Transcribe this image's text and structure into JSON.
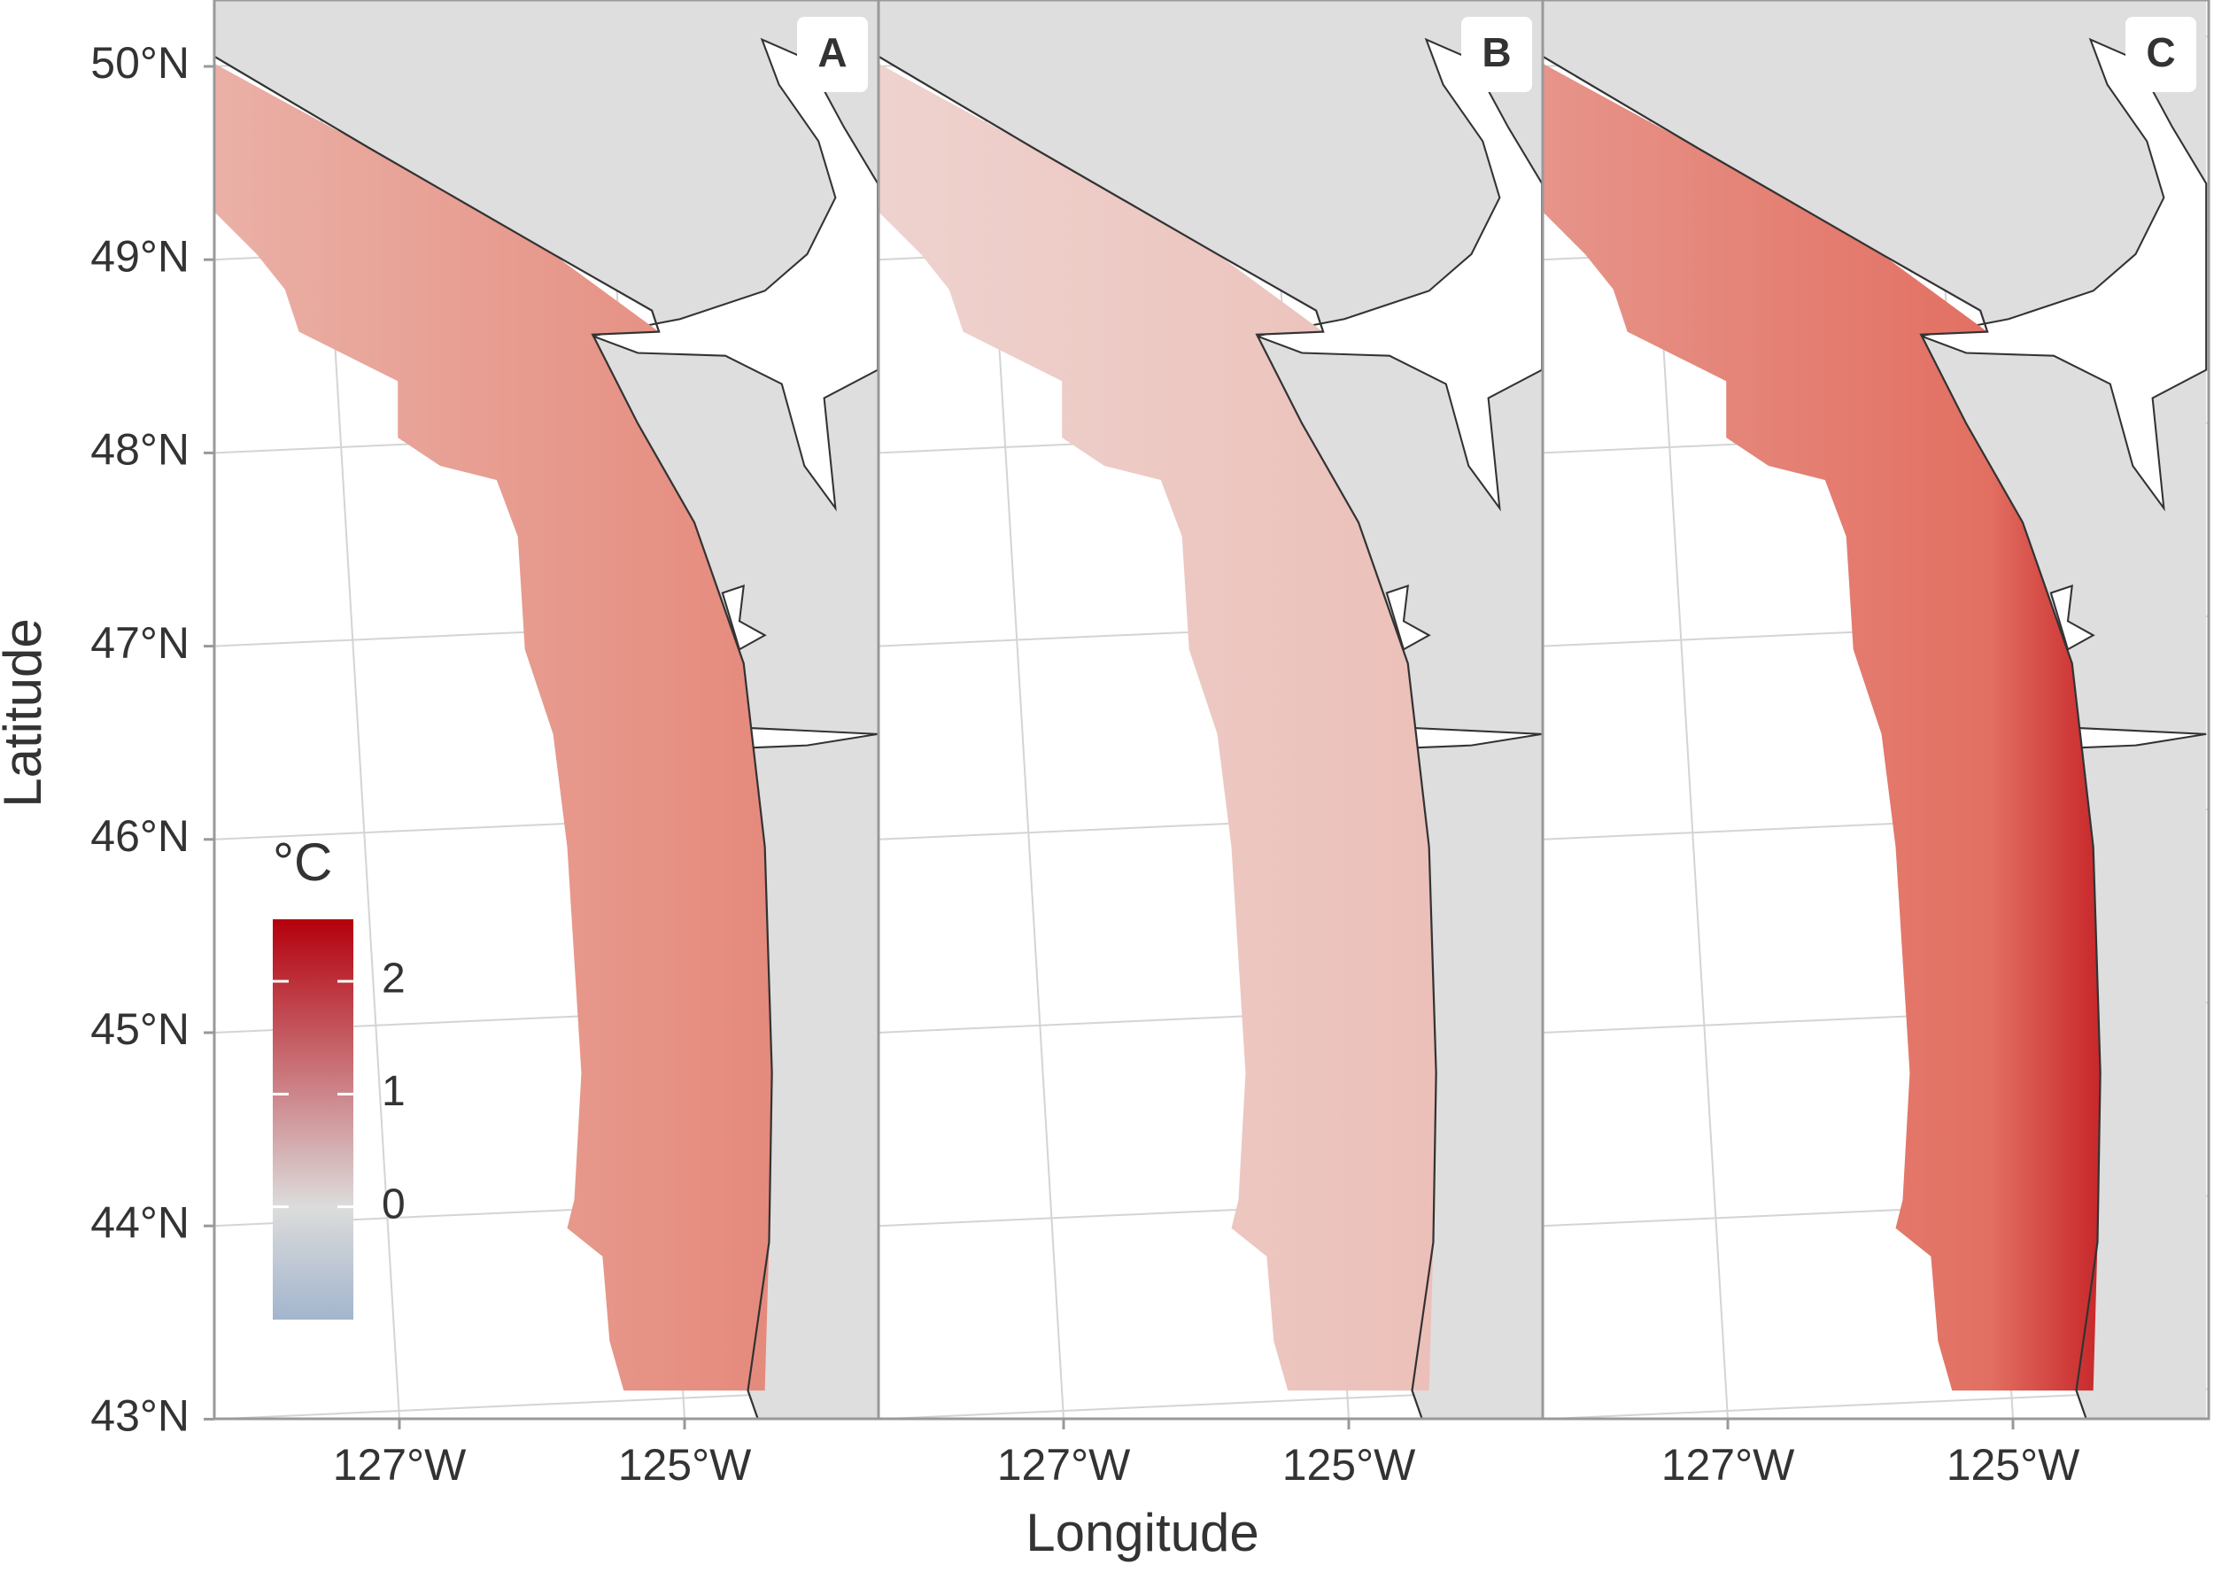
{
  "map": {
    "x_label": "Longitude",
    "y_label": "Latitude",
    "panel_labels": [
      "A",
      "B",
      "C"
    ],
    "lat_ticks": [
      {
        "value": 43,
        "label": "43°N"
      },
      {
        "value": 44,
        "label": "44°N"
      },
      {
        "value": 45,
        "label": "45°N"
      },
      {
        "value": 46,
        "label": "46°N"
      },
      {
        "value": 47,
        "label": "47°N"
      },
      {
        "value": 48,
        "label": "48°N"
      },
      {
        "value": 49,
        "label": "49°N"
      },
      {
        "value": 50,
        "label": "50°N"
      }
    ],
    "lon_ticks": [
      {
        "value": -127,
        "label": "127°W"
      },
      {
        "value": -125,
        "label": "125°W"
      }
    ],
    "grid": true,
    "legend": {
      "title": "°C",
      "ticks": [
        0,
        1,
        2
      ],
      "limits": [
        -1,
        2.55
      ],
      "low_color": "#a3b5cd",
      "mid_color": "#dcdcdc",
      "high_color": "#b4000c"
    }
  }
}
